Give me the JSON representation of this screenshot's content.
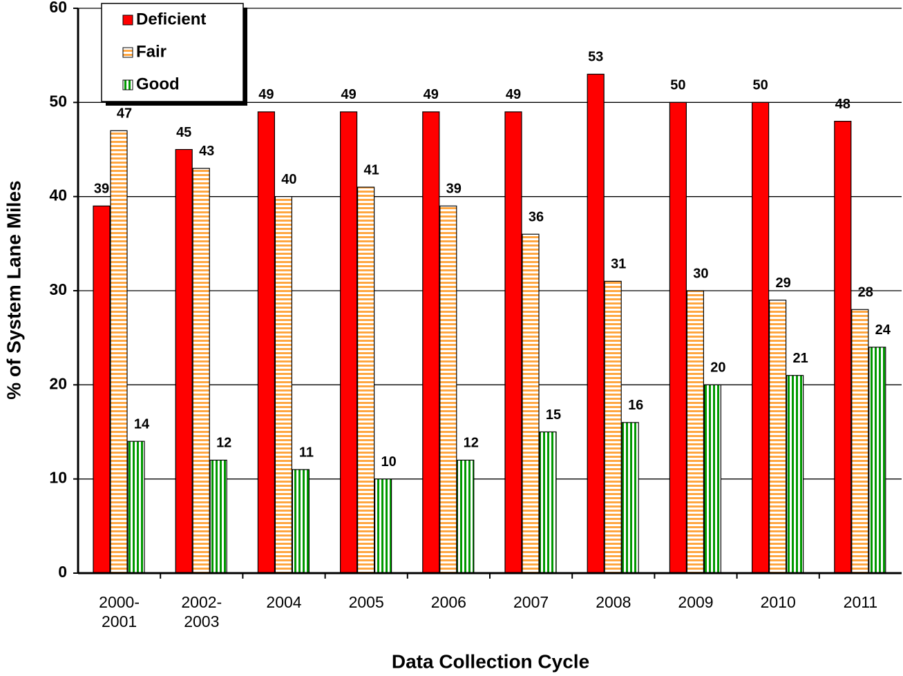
{
  "chart_data": {
    "type": "bar",
    "x_label": "Data Collection Cycle",
    "y_label": "% of System Lane Miles",
    "categories": [
      "2000-2001",
      "2002-2003",
      "2004",
      "2005",
      "2006",
      "2007",
      "2008",
      "2009",
      "2010",
      "2011"
    ],
    "series": [
      {
        "name": "Deficient",
        "color": "#ff0000",
        "values": [
          39,
          45,
          49,
          49,
          49,
          49,
          53,
          50,
          50,
          48
        ]
      },
      {
        "name": "Fair",
        "color": "#ffa640",
        "values": [
          47,
          43,
          40,
          41,
          39,
          36,
          31,
          30,
          29,
          28
        ]
      },
      {
        "name": "Good",
        "color": "#009900",
        "values": [
          14,
          12,
          11,
          10,
          12,
          15,
          16,
          20,
          21,
          24
        ]
      }
    ],
    "ylim": [
      0,
      60
    ],
    "yticks": [
      0,
      10,
      20,
      30,
      40,
      50,
      60
    ],
    "grid": true,
    "legend": "upper left"
  }
}
